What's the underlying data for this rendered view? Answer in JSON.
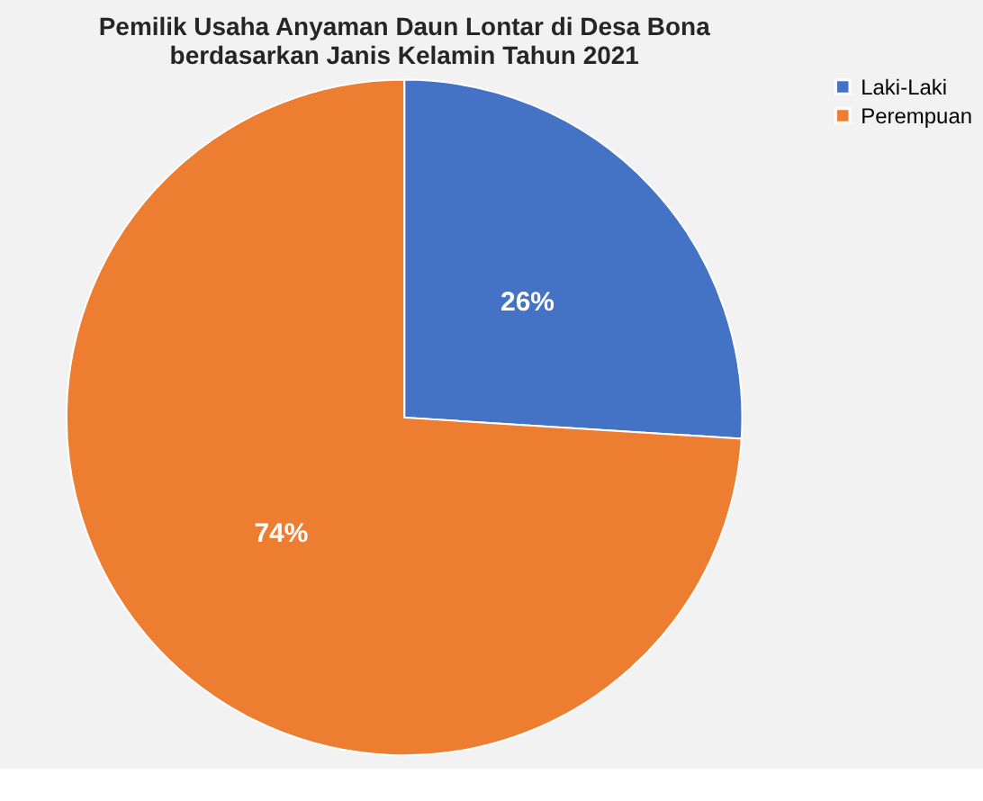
{
  "chart_data": {
    "type": "pie",
    "title": "Pemilik Usaha Anyaman Daun Lontar di Desa Bona berdasarkan Janis Kelamin Tahun 2021",
    "categories": [
      "Laki-Laki",
      "Perempuan"
    ],
    "values": [
      26,
      74
    ],
    "colors": [
      "#4472c4",
      "#ed7d31"
    ],
    "value_labels": [
      "26%",
      "74%"
    ],
    "legend": "right"
  }
}
